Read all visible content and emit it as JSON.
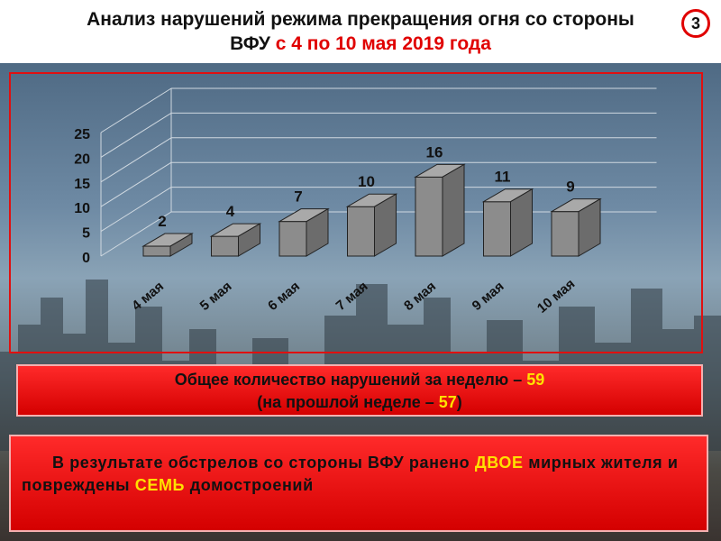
{
  "header": {
    "title_line1": "Анализ нарушений режима прекращения огня со стороны",
    "title_line2_black": "ВФУ",
    "title_line2_red": " с 4 по 10 мая 2019 года",
    "page_number": "3"
  },
  "chart_data": {
    "type": "bar",
    "categories": [
      "4 мая",
      "5 мая",
      "6 мая",
      "7 мая",
      "8 мая",
      "9 мая",
      "10 мая"
    ],
    "values": [
      2,
      4,
      7,
      10,
      16,
      11,
      9
    ],
    "yticks": [
      "0",
      "5",
      "10",
      "15",
      "20",
      "25"
    ],
    "ylim": [
      0,
      25
    ],
    "bar_color": "#8c8c8c",
    "title": "",
    "xlabel": "",
    "ylabel": ""
  },
  "summary": {
    "line1_text": "Общее количество нарушений за неделю – ",
    "line1_value": "59",
    "line2_prefix": "(на прошлой неделе – ",
    "line2_value": "57",
    "line2_suffix": ")"
  },
  "consequences": {
    "part1": "В результате обстрелов со стороны ВФУ ранено ",
    "wounded": "ДВОЕ",
    "part2": " мирных жителя и повреждены ",
    "houses": "СЕМЬ",
    "part3": " домостроений"
  }
}
